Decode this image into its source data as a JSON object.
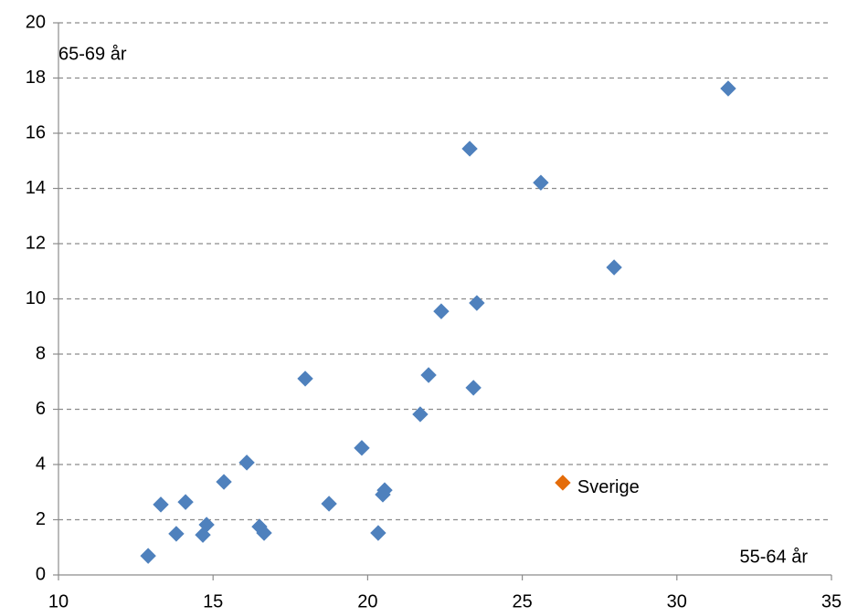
{
  "chart_data": {
    "type": "scatter",
    "ylabel": "65-69 år",
    "xlabel": "55-64 år",
    "xlim": [
      10,
      35
    ],
    "xticks": [
      10,
      15,
      20,
      25,
      30,
      35
    ],
    "ylim": [
      0,
      20
    ],
    "yticks": [
      0,
      2,
      4,
      6,
      8,
      10,
      12,
      14,
      16,
      18,
      20
    ],
    "grid": true,
    "series": [
      {
        "color": "#4f81bd",
        "x": [
          12.9,
          13.31,
          13.81,
          14.11,
          14.67,
          14.79,
          15.35,
          16.09,
          16.5,
          16.65,
          17.98,
          18.75,
          19.81,
          20.34,
          20.49,
          20.55,
          21.7,
          21.97,
          22.38,
          23.3,
          23.42,
          23.53,
          25.6,
          27.97,
          31.66
        ],
        "values": [
          0.69,
          2.55,
          1.49,
          2.64,
          1.45,
          1.82,
          3.37,
          4.07,
          1.75,
          1.52,
          7.11,
          2.58,
          4.6,
          1.52,
          2.91,
          3.07,
          5.82,
          7.24,
          9.55,
          15.44,
          6.78,
          9.85,
          14.21,
          11.14,
          17.62
        ]
      },
      {
        "name": "Sverige",
        "color": "#e46c0a",
        "x": [
          26.31
        ],
        "values": [
          3.34
        ]
      }
    ]
  }
}
